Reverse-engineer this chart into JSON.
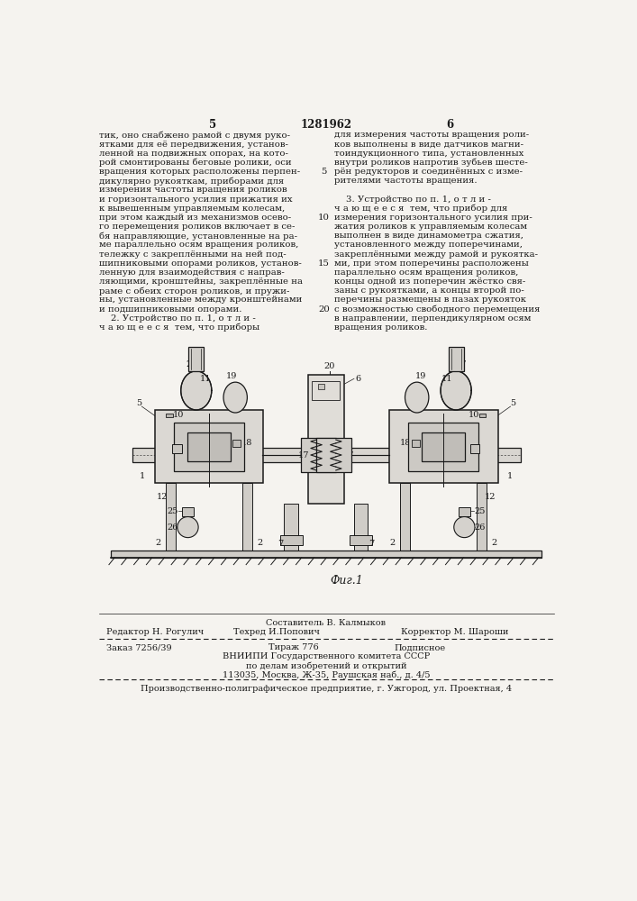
{
  "page_number_left": "5",
  "patent_number": "1281962",
  "page_number_right": "6",
  "background_color": "#f5f3ef",
  "text_color": "#1a1a1a",
  "left_column_text": [
    "тик, оно снабжено рамой с двумя руко-",
    "ятками для её передвижения, установ-",
    "ленной на подвижных опорах, на кото-",
    "рой смонтированы беговые ролики, оси",
    "вращения которых расположены перпен-",
    "дикулярно рукояткам, приборами для",
    "измерения частоты вращения роликов",
    "и горизонтального усилия прижатия их",
    "к вывешенным управляемым колесам,",
    "при этом каждый из механизмов осево-",
    "го перемещения роликов включает в се-",
    "бя направляющие, установленные на ра-",
    "ме параллельно осям вращения роликов,",
    "тележку с закреплёнными на ней под-",
    "шипниковыми опорами роликов, установ-",
    "ленную для взаимодействия с направ-",
    "ляющими, кронштейны, закреплённые на",
    "раме с обеих сторон роликов, и пружи-",
    "ны, установленные между кронштейнами",
    "и подшипниковыми опорами.",
    "    2. Устройство по п. 1, о т л и -",
    "ч а ю щ е е с я  тем, что приборы"
  ],
  "right_column_text": [
    "для измерения частоты вращения роли-",
    "ков выполнены в виде датчиков магни-",
    "тоиндукционного типа, установленных",
    "внутри роликов напротив зубьев шесте-",
    "рён редукторов и соединённых с изме-",
    "рителями частоты вращения.",
    "",
    "    3. Устройство по п. 1, о т л и -",
    "ч а ю щ е е с я  тем, что прибор для",
    "измерения горизонтального усилия при-",
    "жатия роликов к управляемым колесам",
    "выполнен в виде динамометра сжатия,",
    "установленного между поперечинами,",
    "закреплёнными между рамой и рукоятка-",
    "ми, при этом поперечины расположены",
    "параллельно осям вращения роликов,",
    "концы одной из поперечин жёстко свя-",
    "заны с рукоятками, а концы второй по-",
    "перечины размещены в пазах рукояток",
    "с возможностью свободного перемещения",
    "в направлении, перпендикулярном осям",
    "вращения роликов."
  ],
  "fig_label": "Фиг.1",
  "footer_line1_center": "Составитель В. Калмыков",
  "footer_line1_left": "Редактор Н. Рогулич",
  "footer_line1_center2": "Техред И.Попович",
  "footer_line1_right": "Корректор М. Шароши",
  "footer_line2_left": "Заказ 7256/39",
  "footer_line2_center": "Тираж 776",
  "footer_line2_right": "Подписное",
  "footer_line3": "ВНИИПИ Государственного комитета СССР",
  "footer_line4": "по делам изобретений и открытий",
  "footer_line5": "113035, Москва, Ж-35, Раушская наб., д. 4/5",
  "footer_line6": "Производственно-полиграфическое предприятие, г. Ужгород, ул. Проектная, 4"
}
